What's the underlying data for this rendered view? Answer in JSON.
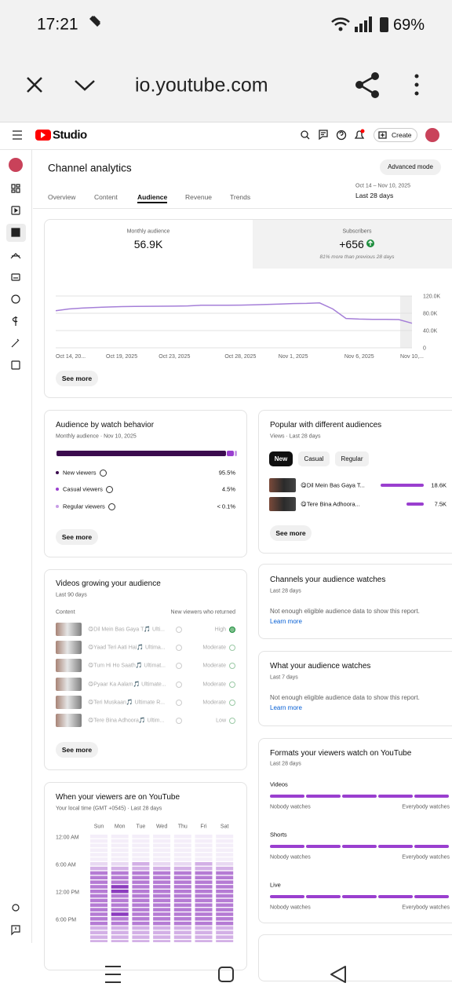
{
  "status": {
    "time": "17:21",
    "battery": "69%"
  },
  "browser": {
    "url": "io.youtube.com"
  },
  "header": {
    "logo": "Studio",
    "create": "Create"
  },
  "page": {
    "title": "Channel analytics",
    "advanced_mode": "Advanced mode",
    "tabs": [
      "Overview",
      "Content",
      "Audience",
      "Revenue",
      "Trends"
    ],
    "active_tab": 2,
    "date_range": "Oct 14 – Nov 10, 2025",
    "period": "Last 28 days"
  },
  "summary": {
    "metrics": [
      {
        "label": "Monthly audience",
        "value": "56.9K"
      },
      {
        "label": "Subscribers",
        "value": "+656",
        "note": "81% more than previous 28 days"
      }
    ],
    "see_more": "See more"
  },
  "chart_data": {
    "type": "line",
    "categories": [
      "Oct 14, 20...",
      null,
      null,
      null,
      null,
      "Oct 19, 2025",
      null,
      null,
      null,
      "Oct 23, 2025",
      null,
      null,
      null,
      null,
      "Oct 28, 2025",
      null,
      null,
      null,
      "Nov 1, 2025",
      null,
      null,
      null,
      null,
      "Nov 6, 2025",
      null,
      null,
      null,
      "Nov 10,..."
    ],
    "values": [
      86000,
      90000,
      92000,
      93500,
      94500,
      95500,
      96000,
      96200,
      96300,
      96500,
      97000,
      98500,
      98600,
      98700,
      99000,
      99500,
      100500,
      101500,
      102500,
      103000,
      104000,
      90000,
      68000,
      66500,
      66000,
      66000,
      65500,
      56900
    ],
    "ylim": [
      0,
      120000
    ],
    "yticks": [
      0,
      {
        "value": 40000,
        "label": "40.0K"
      },
      {
        "value": 80000,
        "label": "80.0K"
      },
      {
        "value": 120000,
        "label": "120.0K"
      }
    ],
    "color": "#a57fd8",
    "grid": true
  },
  "watch_behavior": {
    "title": "Audience by watch behavior",
    "subtitle": "Monthly audience · Nov 10, 2025",
    "categories": [
      "New viewers",
      "Casual viewers",
      "Regular viewers"
    ],
    "values": [
      95.5,
      4.5,
      0.1
    ],
    "value_labels": [
      "95.5%",
      "4.5%",
      "< 0.1%"
    ],
    "colors": [
      "#3b0b4e",
      "#9a3fcf",
      "#c89de6"
    ],
    "see_more": "See more"
  },
  "popular": {
    "title": "Popular with different audiences",
    "subtitle": "Views · Last 28 days",
    "chips": [
      "New",
      "Casual",
      "Regular"
    ],
    "active_chip": 0,
    "categories": [
      "😋Dil Mein Bas Gaya T...",
      "😋Tere Bina Adhoora..."
    ],
    "values": [
      18600,
      7500
    ],
    "value_labels": [
      "18.6K",
      "7.5K"
    ],
    "color": "#9a3fcf",
    "see_more": "See more"
  },
  "growing": {
    "title": "Videos growing your audience",
    "subtitle": "Last 90 days",
    "headers": [
      "Content",
      "New viewers who returned"
    ],
    "rows": [
      {
        "title": "😋Dil Mein Bas Gaya T🎵 Ulti...",
        "status": "High"
      },
      {
        "title": "😋Yaad Teri Aati Hai🎵 Ultima...",
        "status": "Moderate"
      },
      {
        "title": "😋Tum Hi Ho Saath🎵 Ultimat...",
        "status": "Moderate"
      },
      {
        "title": "😋Pyaar Ka Aalam🎵 Ultimate...",
        "status": "Moderate"
      },
      {
        "title": "😋Teri Muskaan🎵 Ultimate R...",
        "status": "Moderate"
      },
      {
        "title": "😋Tere Bina Adhoora🎵 Ultim...",
        "status": "Low"
      }
    ],
    "see_more": "See more"
  },
  "when": {
    "title": "When your viewers are on YouTube",
    "subtitle": "Your local time (GMT +0545) · Last 28 days",
    "days": [
      "Sun",
      "Mon",
      "Tue",
      "Wed",
      "Thu",
      "Fri",
      "Sat"
    ],
    "times": [
      "12:00 AM",
      "6:00 AM",
      "12:00 PM",
      "6:00 PM"
    ],
    "level_colors": [
      "#f4eef9",
      "#e8d9f2",
      "#d3b0e6",
      "#b57bd4",
      "#8d3dbf"
    ],
    "levels": [
      [
        0,
        0,
        0,
        0,
        0,
        0,
        0
      ],
      [
        0,
        0,
        0,
        0,
        0,
        0,
        0
      ],
      [
        0,
        0,
        0,
        0,
        0,
        0,
        0
      ],
      [
        0,
        0,
        0,
        0,
        0,
        0,
        0
      ],
      [
        0,
        0,
        0,
        0,
        0,
        0,
        0
      ],
      [
        0,
        0,
        0,
        0,
        0,
        0,
        0
      ],
      [
        1,
        1,
        2,
        1,
        1,
        2,
        1
      ],
      [
        2,
        2,
        2,
        2,
        2,
        2,
        2
      ],
      [
        3,
        3,
        3,
        3,
        3,
        3,
        3
      ],
      [
        3,
        3,
        3,
        3,
        3,
        3,
        3
      ],
      [
        3,
        3,
        3,
        3,
        3,
        3,
        3
      ],
      [
        3,
        4,
        3,
        3,
        3,
        3,
        3
      ],
      [
        3,
        4,
        3,
        3,
        3,
        3,
        3
      ],
      [
        3,
        3,
        3,
        3,
        3,
        3,
        3
      ],
      [
        3,
        3,
        3,
        3,
        3,
        3,
        3
      ],
      [
        3,
        3,
        3,
        3,
        3,
        3,
        3
      ],
      [
        3,
        3,
        3,
        3,
        3,
        3,
        3
      ],
      [
        3,
        4,
        3,
        3,
        3,
        3,
        3
      ],
      [
        3,
        3,
        3,
        3,
        3,
        3,
        3
      ],
      [
        3,
        3,
        3,
        3,
        3,
        3,
        3
      ],
      [
        2,
        2,
        2,
        2,
        2,
        2,
        2
      ],
      [
        2,
        2,
        2,
        2,
        2,
        2,
        2
      ],
      [
        2,
        2,
        2,
        2,
        2,
        2,
        2
      ],
      [
        2,
        2,
        2,
        2,
        2,
        2,
        2
      ]
    ]
  },
  "channels": {
    "title": "Channels your audience watches",
    "subtitle": "Last 28 days",
    "message": "Not enough eligible audience data to show this report.",
    "link": "Learn more"
  },
  "what": {
    "title": "What your audience watches",
    "subtitle": "Last 7 days",
    "message": "Not enough eligible audience data to show this report.",
    "link": "Learn more"
  },
  "formats": {
    "title": "Formats your viewers watch on YouTube",
    "subtitle": "Last 28 days",
    "sections": [
      "Videos",
      "Shorts",
      "Live"
    ],
    "min_label": "Nobody watches",
    "max_label": "Everybody watches"
  }
}
